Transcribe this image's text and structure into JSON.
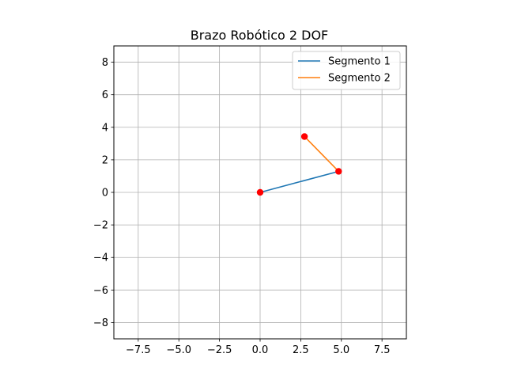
{
  "chart_data": {
    "type": "line",
    "title": "Brazo Robótico 2 DOF",
    "xlabel": "",
    "ylabel": "",
    "xlim": [
      -9,
      9
    ],
    "ylim": [
      -9,
      9
    ],
    "xticks": [
      -7.5,
      -5.0,
      -2.5,
      0.0,
      2.5,
      5.0,
      7.5
    ],
    "xtick_labels": [
      "−7.5",
      "−5.0",
      "−2.5",
      "0.0",
      "2.5",
      "5.0",
      "7.5"
    ],
    "yticks": [
      -8,
      -6,
      -4,
      -2,
      0,
      2,
      4,
      6,
      8
    ],
    "ytick_labels": [
      "−8",
      "−6",
      "−4",
      "−2",
      "0",
      "2",
      "4",
      "6",
      "8"
    ],
    "grid": true,
    "legend_position": "top-right",
    "series": [
      {
        "name": "Segmento 1",
        "color": "#1f77b4",
        "x": [
          0.0,
          4.83
        ],
        "y": [
          0.0,
          1.29
        ]
      },
      {
        "name": "Segmento 2",
        "color": "#ff7f0e",
        "x": [
          4.83,
          2.73
        ],
        "y": [
          1.29,
          3.43
        ]
      }
    ],
    "joints": {
      "color": "#ff0000",
      "points": [
        {
          "x": 0.0,
          "y": 0.0
        },
        {
          "x": 4.83,
          "y": 1.29
        },
        {
          "x": 2.73,
          "y": 3.43
        }
      ]
    }
  }
}
